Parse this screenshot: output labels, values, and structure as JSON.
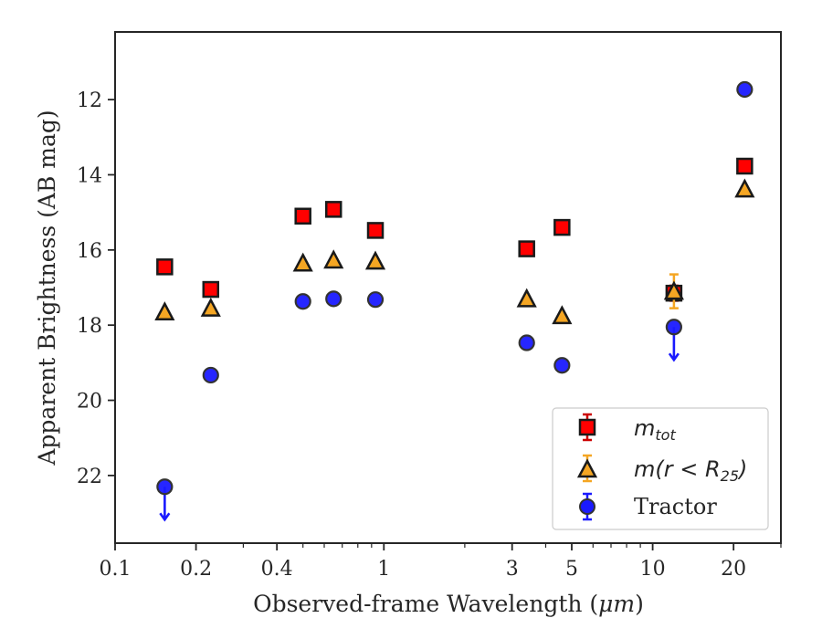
{
  "chart_data": {
    "type": "scatter",
    "title": "",
    "xlabel": "Observed-frame Wavelength (",
    "xlabel_unit": "μm",
    "xlabel_end": ")",
    "ylabel": "Apparent Brightness (AB mag)",
    "xscale": "log",
    "xlim": [
      0.1,
      30
    ],
    "ylim": [
      23.8,
      10.2
    ],
    "y_inverted": true,
    "x_ticks": [
      {
        "value": 0.1,
        "label": "0.1"
      },
      {
        "value": 0.2,
        "label": "0.2"
      },
      {
        "value": 0.4,
        "label": "0.4"
      },
      {
        "value": 1,
        "label": "1"
      },
      {
        "value": 3,
        "label": "3"
      },
      {
        "value": 5,
        "label": "5"
      },
      {
        "value": 10,
        "label": "10"
      },
      {
        "value": 20,
        "label": "20"
      }
    ],
    "y_ticks": [
      {
        "value": 12,
        "label": "12"
      },
      {
        "value": 14,
        "label": "14"
      },
      {
        "value": 16,
        "label": "16"
      },
      {
        "value": 18,
        "label": "18"
      },
      {
        "value": 20,
        "label": "20"
      },
      {
        "value": 22,
        "label": "22"
      }
    ],
    "grid": false,
    "legend_position": "lower right",
    "series": [
      {
        "name_main": "m",
        "name_sub": "tot",
        "marker": "square",
        "color": "#ff0000",
        "edge_color": "#1a1a1a",
        "errorbar_color": "#cc0000",
        "points": [
          {
            "x": 0.153,
            "y": 16.45
          },
          {
            "x": 0.227,
            "y": 17.05
          },
          {
            "x": 0.5,
            "y": 15.1
          },
          {
            "x": 0.65,
            "y": 14.92
          },
          {
            "x": 0.93,
            "y": 15.48
          },
          {
            "x": 3.4,
            "y": 15.97
          },
          {
            "x": 4.6,
            "y": 15.4
          },
          {
            "x": 12.0,
            "y": 17.15,
            "err": 0.2
          },
          {
            "x": 22.0,
            "y": 13.77
          }
        ]
      },
      {
        "name_main": "m(r < R",
        "name_sub": "25",
        "name_end": ")",
        "marker": "triangle",
        "color": "#f5a623",
        "edge_color": "#1a1a1a",
        "errorbar_color": "#f5a623",
        "points": [
          {
            "x": 0.153,
            "y": 17.65
          },
          {
            "x": 0.227,
            "y": 17.55
          },
          {
            "x": 0.5,
            "y": 16.35
          },
          {
            "x": 0.65,
            "y": 16.27
          },
          {
            "x": 0.93,
            "y": 16.3
          },
          {
            "x": 3.4,
            "y": 17.3
          },
          {
            "x": 4.6,
            "y": 17.75
          },
          {
            "x": 12.0,
            "y": 17.1,
            "err": 0.45
          },
          {
            "x": 22.0,
            "y": 14.38
          }
        ]
      },
      {
        "name_main": "Tractor",
        "marker": "circle",
        "color": "#1a1aff",
        "edge_color": "#333333",
        "errorbar_color": "#1a1aff",
        "points": [
          {
            "x": 0.153,
            "y": 22.3,
            "upper_limit": true
          },
          {
            "x": 0.227,
            "y": 19.33
          },
          {
            "x": 0.5,
            "y": 17.37
          },
          {
            "x": 0.65,
            "y": 17.3
          },
          {
            "x": 0.93,
            "y": 17.32
          },
          {
            "x": 3.4,
            "y": 18.47
          },
          {
            "x": 4.6,
            "y": 19.07
          },
          {
            "x": 12.0,
            "y": 18.05,
            "upper_limit": true
          },
          {
            "x": 22.0,
            "y": 11.73
          }
        ]
      }
    ]
  }
}
